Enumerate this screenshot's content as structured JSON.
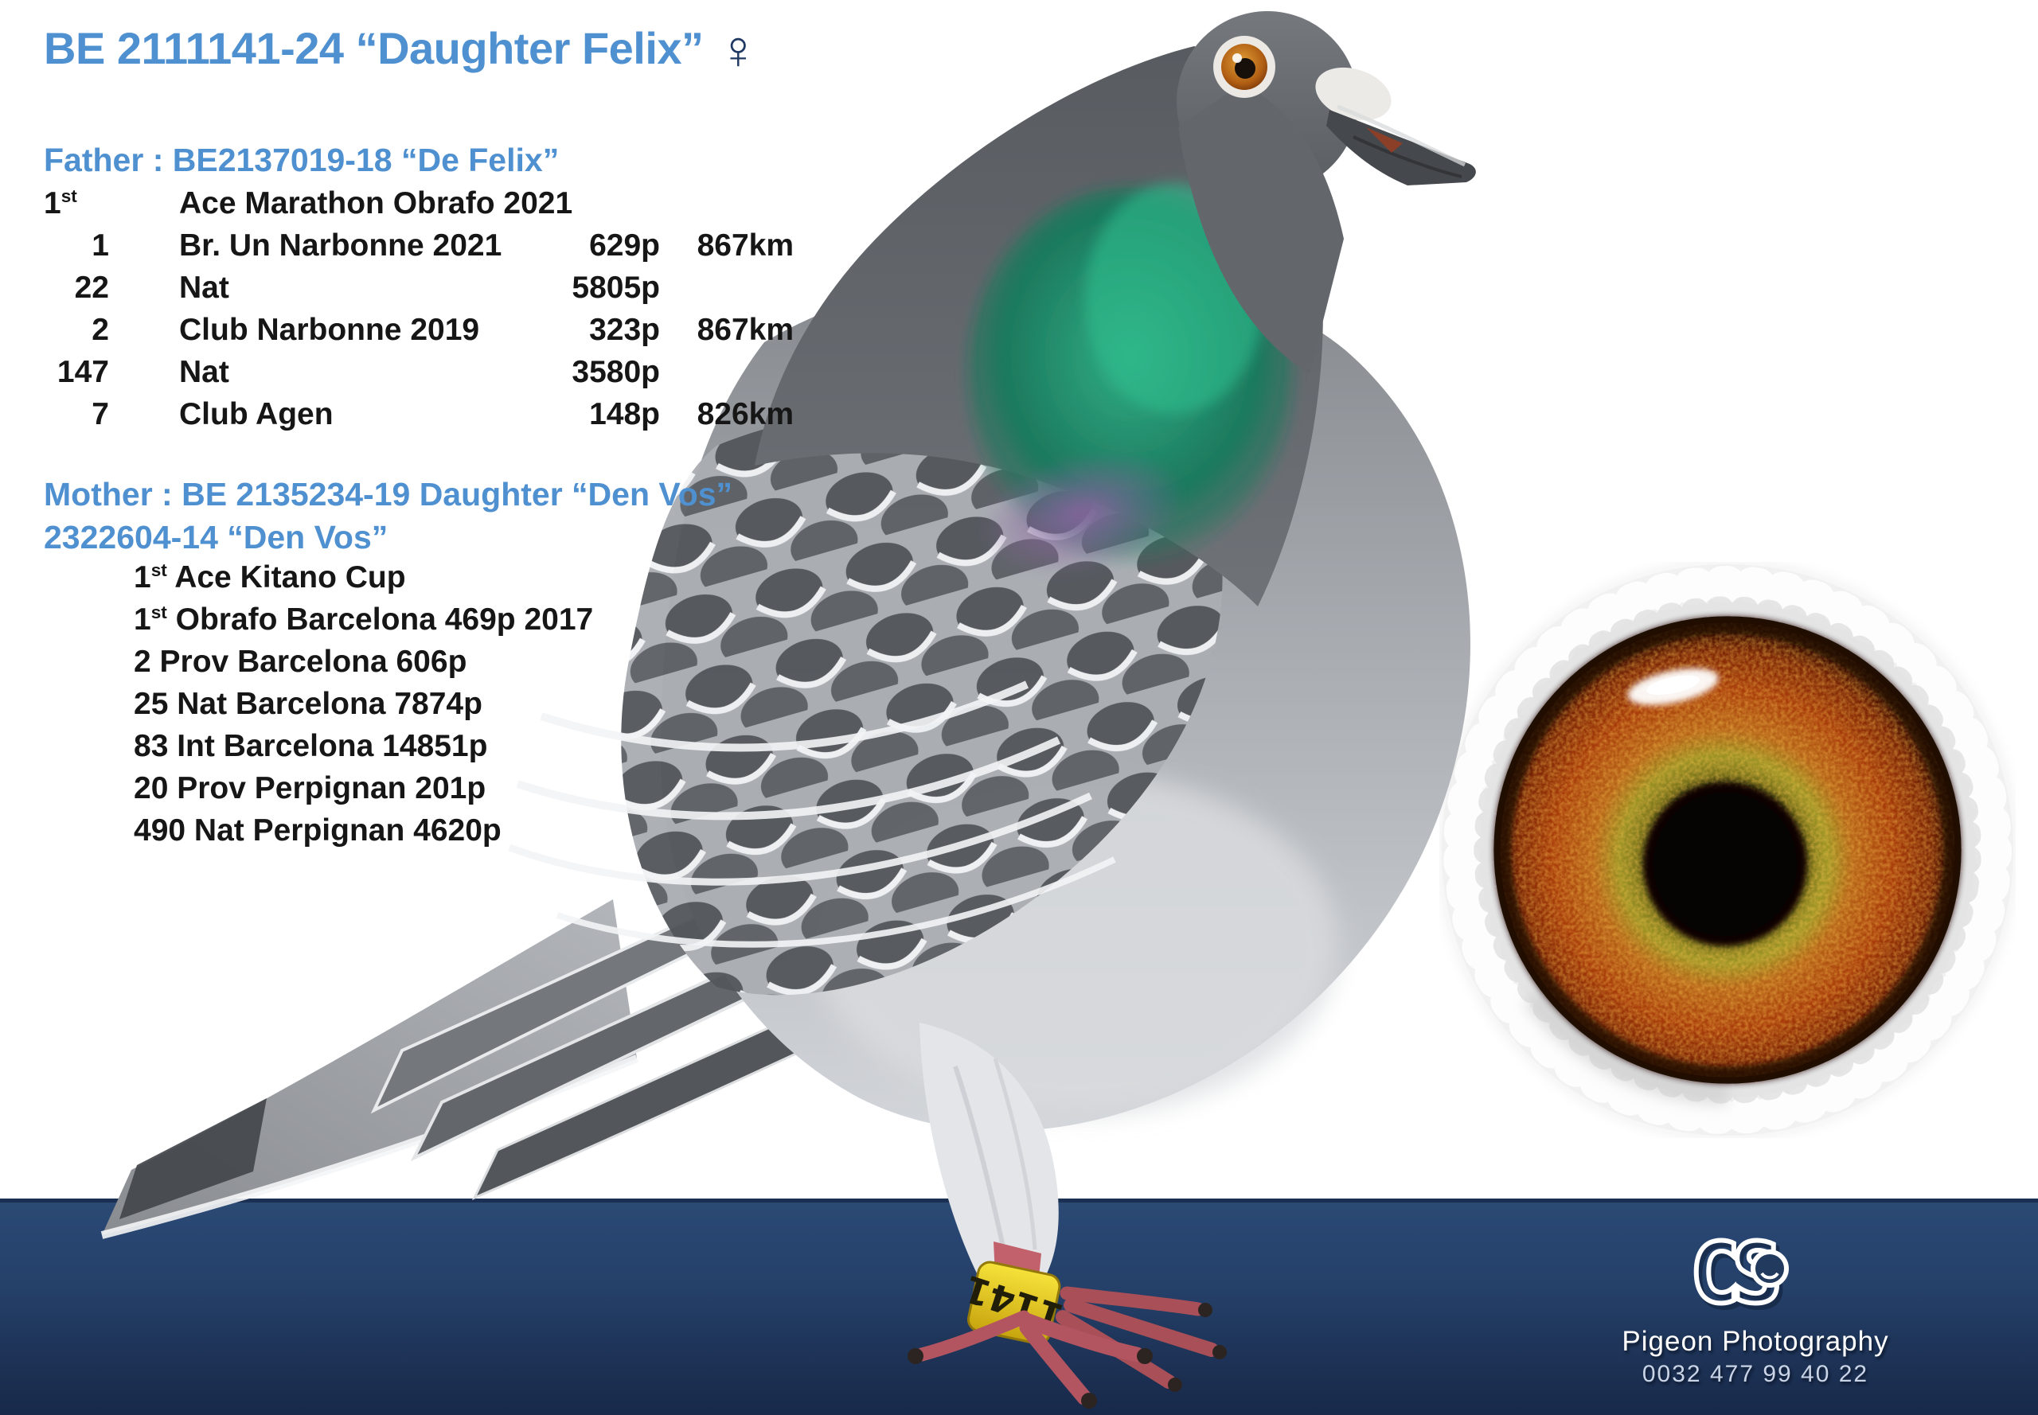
{
  "colors": {
    "accent_blue": "#4F90D0",
    "ink": "#161616",
    "female_symbol": "#1F3864",
    "banner_top": "#2B4A74",
    "banner_bottom": "#18294A",
    "leg_band_yellow": "#F0D32A"
  },
  "header": {
    "title": "BE 2111141-24 “Daughter Felix”",
    "sex_symbol": "♀"
  },
  "father": {
    "heading": "Father : BE2137019-18 “De Felix”",
    "results": [
      {
        "place": "1",
        "ordinal": "st",
        "race": "Ace Marathon Obrafo 2021",
        "birds": "",
        "distance": ""
      },
      {
        "place": "1",
        "ordinal": "",
        "race": "Br. Un Narbonne 2021",
        "birds": "629p",
        "distance": "867km"
      },
      {
        "place": "22",
        "ordinal": "",
        "race": "Nat",
        "birds": "5805p",
        "distance": ""
      },
      {
        "place": "2",
        "ordinal": "",
        "race": "Club Narbonne 2019",
        "birds": "323p",
        "distance": "867km"
      },
      {
        "place": "147",
        "ordinal": "",
        "race": "Nat",
        "birds": "3580p",
        "distance": ""
      },
      {
        "place": "7",
        "ordinal": "",
        "race": "Club Agen",
        "birds": "148p",
        "distance": "826km"
      }
    ]
  },
  "mother": {
    "heading_line1": "Mother : BE 2135234-19 Daughter “Den Vos”",
    "heading_line2": "2322604-14 “Den Vos”",
    "results": [
      {
        "place": "1",
        "ordinal": "st",
        "text": "Ace Kitano Cup"
      },
      {
        "place": "1",
        "ordinal": "st",
        "text": "Obrafo Barcelona 469p 2017"
      },
      {
        "place": "2",
        "ordinal": "",
        "text": "Prov Barcelona 606p"
      },
      {
        "place": "25",
        "ordinal": "",
        "text": "Nat Barcelona 7874p"
      },
      {
        "place": "83",
        "ordinal": "",
        "text": "Int Barcelona 14851p"
      },
      {
        "place": "20",
        "ordinal": "",
        "text": "Prov Perpignan 201p"
      },
      {
        "place": "490",
        "ordinal": "",
        "text": "Nat Perpignan 4620p"
      }
    ]
  },
  "pigeon": {
    "leg_band": "1141"
  },
  "footer": {
    "logo": "CS",
    "brand": "Pigeon Photography",
    "phone": "0032 477 99 40 22"
  }
}
